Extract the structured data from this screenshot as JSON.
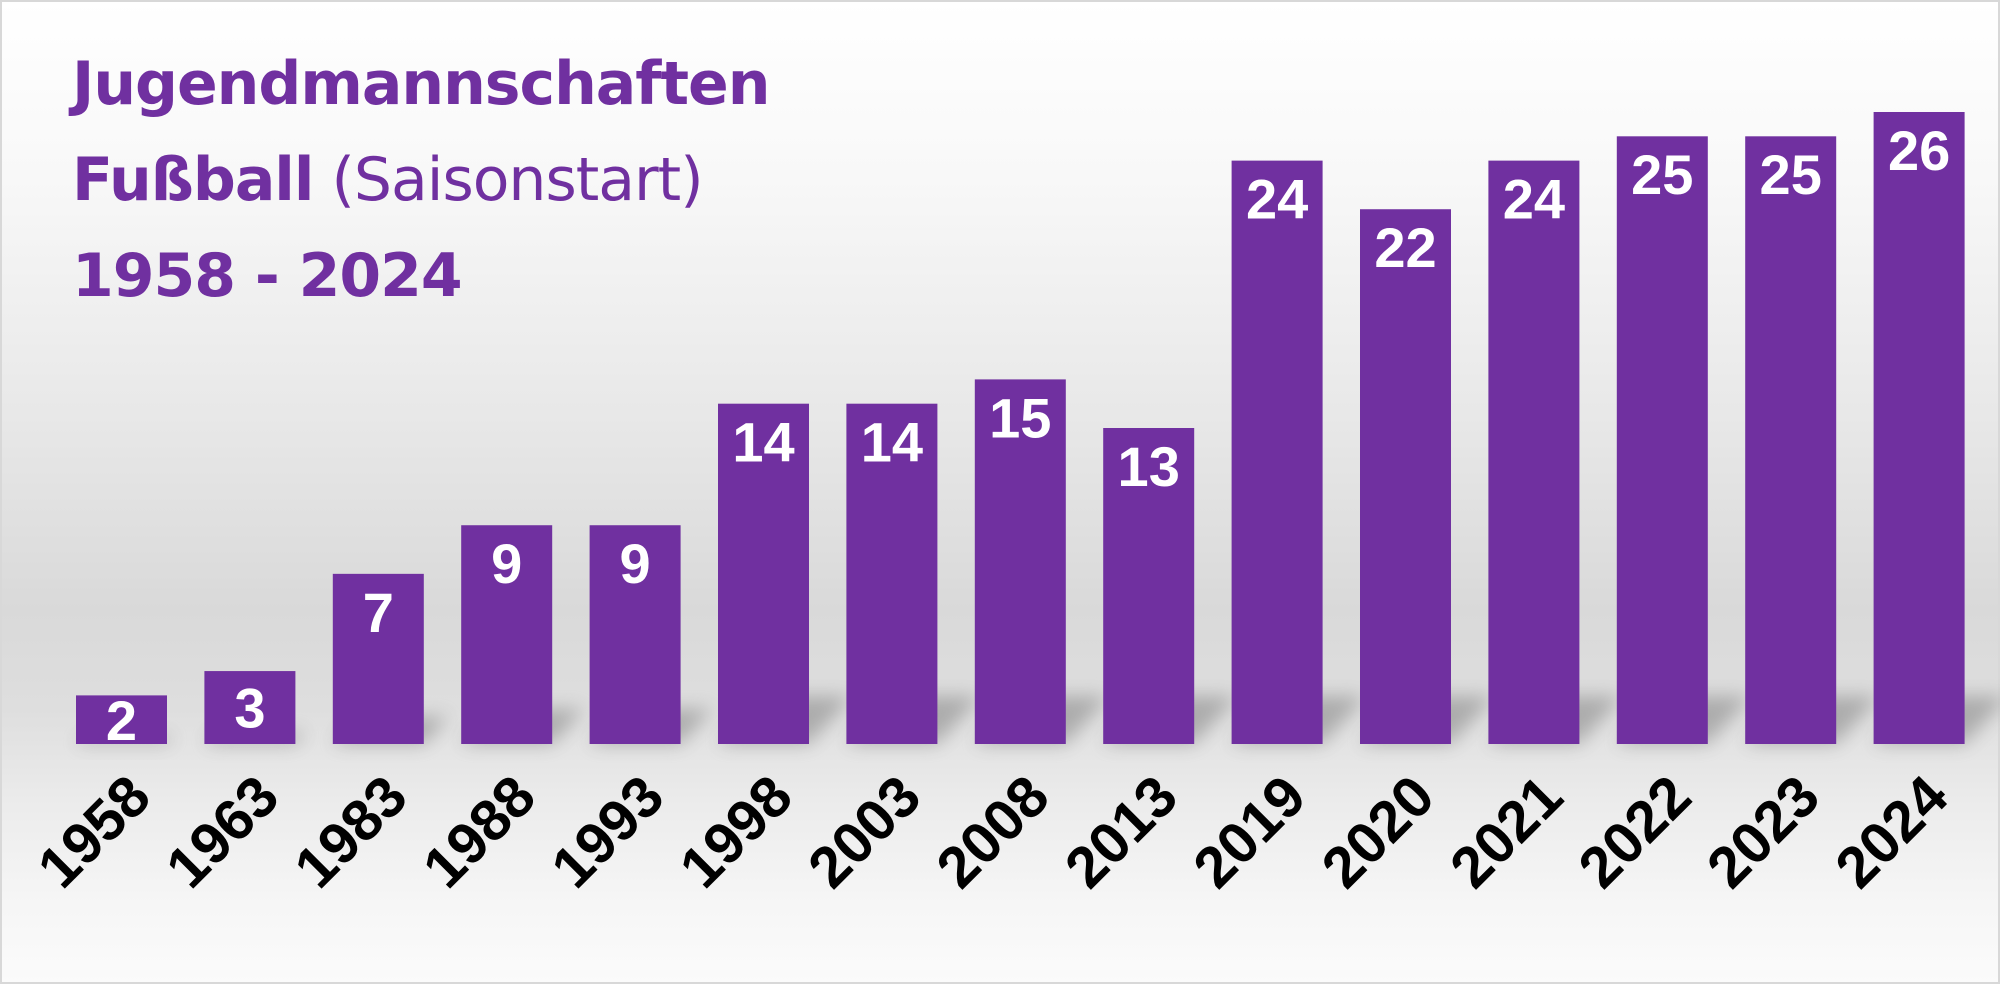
{
  "chart_data": {
    "type": "bar",
    "title": {
      "line1": "Jugendmannschaften",
      "line2_bold": "Fußball",
      "line2_normal": "(Saisonstart)",
      "line3": "1958 - 2024"
    },
    "xlabel": "",
    "ylabel": "",
    "categories": [
      "1958",
      "1963",
      "1983",
      "1988",
      "1993",
      "1998",
      "2003",
      "2008",
      "2013",
      "2019",
      "2020",
      "2021",
      "2022",
      "2023",
      "2024"
    ],
    "values": [
      2,
      3,
      7,
      9,
      9,
      14,
      14,
      15,
      13,
      24,
      22,
      24,
      25,
      25,
      26
    ],
    "ylim": [
      0,
      26
    ],
    "grid": false,
    "legend": "none",
    "data_labels": true,
    "colors": {
      "bar": "#7030a0",
      "data_label": "#ffffff",
      "tick_label": "#000000",
      "title": "#7030a0"
    }
  }
}
